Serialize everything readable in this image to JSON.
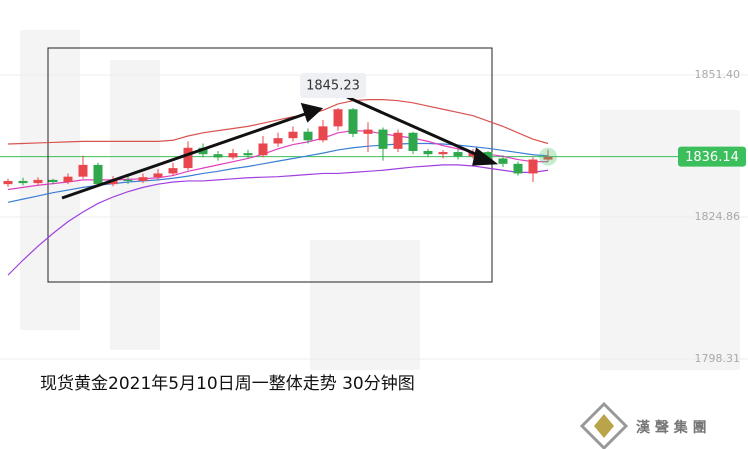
{
  "chart_data": {
    "type": "candlestick",
    "caption": "现货黄金2021年5月10日周一整体走势  30分钟图",
    "logo_text": "漢 聲 集 團",
    "ylim": [
      1781.5,
      1865.42
    ],
    "yticks": [
      {
        "value": 1851.4,
        "label": "1851.40"
      },
      1824.86,
      1798.31
    ],
    "grid": true,
    "last_price": 1836.14,
    "last_price_color": "#3bbf5c",
    "peak_annotation": 1845.23,
    "up_color": "#e8474d",
    "down_color": "#2ea84a",
    "candles": {
      "open": [
        1831.0,
        1831.6,
        1831.2,
        1831.8,
        1831.4,
        1832.4,
        1834.6,
        1831.0,
        1831.8,
        1831.6,
        1832.3,
        1833.0,
        1834.0,
        1837.8,
        1836.6,
        1836.0,
        1836.8,
        1836.4,
        1838.6,
        1839.6,
        1840.8,
        1839.2,
        1841.8,
        1845.0,
        1840.4,
        1841.2,
        1837.6,
        1840.6,
        1837.2,
        1836.6,
        1837.0,
        1836.2,
        1837.0,
        1835.8,
        1834.8,
        1833.0,
        1835.6
      ],
      "high": [
        1832.0,
        1832.2,
        1832.3,
        1832.0,
        1833.0,
        1836.3,
        1835.0,
        1832.5,
        1832.4,
        1833.0,
        1833.8,
        1835.0,
        1839.0,
        1838.6,
        1837.2,
        1837.6,
        1837.4,
        1840.0,
        1840.6,
        1841.8,
        1841.4,
        1843.0,
        1845.23,
        1845.2,
        1842.6,
        1841.6,
        1841.2,
        1840.8,
        1837.6,
        1837.4,
        1837.6,
        1837.6,
        1837.2,
        1836.4,
        1835.2,
        1836.0,
        1837.4
      ],
      "low": [
        1830.5,
        1830.8,
        1830.9,
        1831.0,
        1831.0,
        1832.0,
        1830.5,
        1830.6,
        1831.0,
        1831.2,
        1831.9,
        1832.6,
        1833.6,
        1836.0,
        1835.4,
        1835.6,
        1835.8,
        1836.0,
        1838.0,
        1839.0,
        1838.6,
        1838.8,
        1841.0,
        1839.8,
        1837.0,
        1835.4,
        1837.0,
        1836.6,
        1836.0,
        1835.8,
        1835.6,
        1835.8,
        1835.2,
        1834.2,
        1832.6,
        1831.4,
        1835.2
      ],
      "close": [
        1831.6,
        1831.2,
        1831.8,
        1831.4,
        1832.4,
        1834.6,
        1831.0,
        1831.8,
        1831.6,
        1832.3,
        1833.0,
        1834.0,
        1837.8,
        1836.6,
        1836.0,
        1836.8,
        1836.4,
        1838.6,
        1839.6,
        1840.8,
        1839.2,
        1841.8,
        1845.0,
        1840.4,
        1841.2,
        1837.6,
        1840.6,
        1837.2,
        1836.6,
        1837.0,
        1836.2,
        1837.0,
        1835.8,
        1834.8,
        1833.0,
        1835.6,
        1836.14
      ]
    },
    "series": [
      {
        "color": "#d9534f",
        "values": [
          1838.5,
          1838.6,
          1838.7,
          1838.8,
          1838.9,
          1839.0,
          1839.0,
          1839.0,
          1839.0,
          1839.0,
          1839.0,
          1839.2,
          1840.0,
          1840.6,
          1841.0,
          1841.4,
          1841.8,
          1842.4,
          1843.0,
          1843.6,
          1844.0,
          1844.8,
          1846.0,
          1846.6,
          1846.8,
          1846.8,
          1846.6,
          1846.2,
          1845.6,
          1845.0,
          1844.4,
          1843.8,
          1842.8,
          1841.8,
          1840.6,
          1839.4,
          1838.6
        ]
      },
      {
        "color": "#3a7fd5",
        "values": [
          1827.6,
          1828.2,
          1828.8,
          1829.4,
          1829.9,
          1830.4,
          1830.8,
          1831.1,
          1831.4,
          1831.6,
          1831.8,
          1832.1,
          1832.5,
          1833.0,
          1833.4,
          1833.9,
          1834.3,
          1834.8,
          1835.3,
          1835.8,
          1836.3,
          1836.8,
          1837.4,
          1837.8,
          1838.1,
          1838.3,
          1838.5,
          1838.6,
          1838.6,
          1838.5,
          1838.3,
          1838.0,
          1837.7,
          1837.3,
          1836.9,
          1836.5,
          1836.3
        ]
      },
      {
        "color": "#e040c0",
        "values": [
          1830.0,
          1830.4,
          1830.8,
          1831.1,
          1831.4,
          1831.8,
          1831.8,
          1831.8,
          1831.9,
          1832.0,
          1832.2,
          1832.6,
          1833.4,
          1834.0,
          1834.6,
          1835.2,
          1835.8,
          1836.6,
          1837.6,
          1838.4,
          1838.9,
          1839.6,
          1840.6,
          1841.0,
          1840.9,
          1840.4,
          1840.0,
          1839.6,
          1839.0,
          1838.2,
          1837.6,
          1837.0,
          1836.6,
          1836.2,
          1835.6,
          1835.2,
          1835.2
        ]
      },
      {
        "color": "#a040e0",
        "values": [
          1814.0,
          1816.8,
          1819.4,
          1821.8,
          1824.0,
          1825.8,
          1827.4,
          1828.6,
          1829.6,
          1830.4,
          1831.0,
          1831.4,
          1831.6,
          1831.6,
          1831.8,
          1832.0,
          1832.2,
          1832.3,
          1832.4,
          1832.6,
          1832.8,
          1833.0,
          1833.0,
          1833.2,
          1833.4,
          1833.6,
          1833.9,
          1834.2,
          1834.4,
          1834.6,
          1834.6,
          1834.4,
          1834.0,
          1833.6,
          1833.2,
          1833.2,
          1833.6
        ]
      }
    ]
  }
}
